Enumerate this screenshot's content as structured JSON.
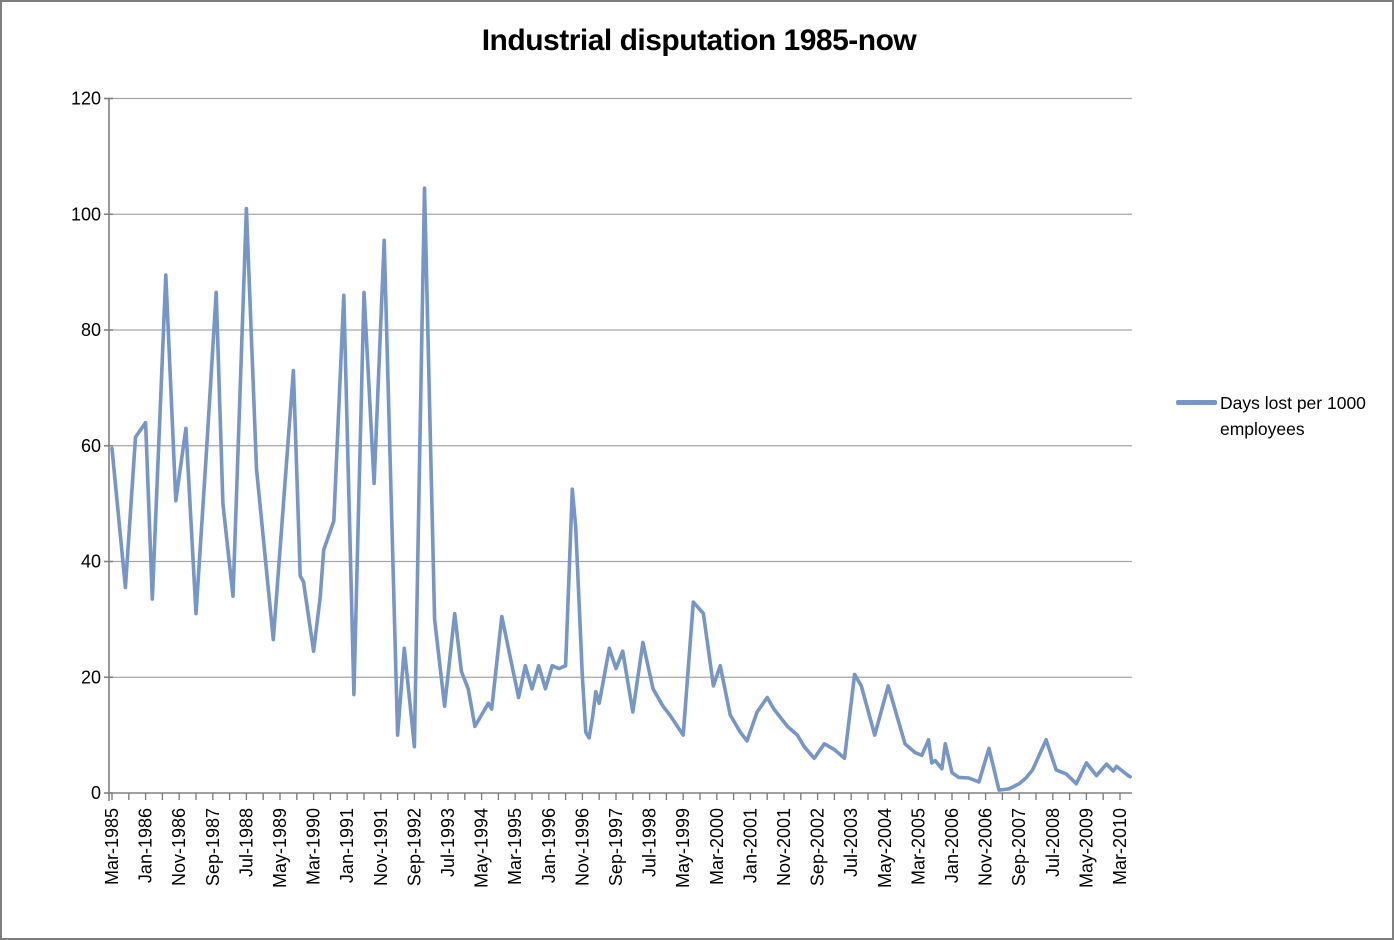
{
  "chart_data": {
    "type": "line",
    "title": "Industrial disputation 1985-now",
    "xlabel": "",
    "ylabel": "",
    "ylim": [
      0,
      120
    ],
    "y_ticks": [
      0,
      20,
      40,
      60,
      80,
      100,
      120
    ],
    "grid": "horizontal",
    "legend_position": "right",
    "x_axis_note": "monthly data from Mar-1985; labels every 10 months; minor ticks every 5 months",
    "x_tick_labels": [
      "Mar-1985",
      "Jan-1986",
      "Nov-1986",
      "Sep-1987",
      "Jul-1988",
      "May-1989",
      "Mar-1990",
      "Jan-1991",
      "Nov-1991",
      "Sep-1992",
      "Jul-1993",
      "May-1994",
      "Mar-1995",
      "Jan-1996",
      "Nov-1996",
      "Sep-1997",
      "Jul-1998",
      "May-1999",
      "Mar-2000",
      "Jan-2001",
      "Nov-2001",
      "Sep-2002",
      "Jul-2003",
      "May-2004",
      "Mar-2005",
      "Jan-2006",
      "Nov-2006",
      "Sep-2007",
      "Jul-2008",
      "May-2009",
      "Mar-2010"
    ],
    "x_label_interval_months": 10,
    "series": [
      {
        "name": "Days lost per 1000 employees",
        "x_unit": "month index, 0 = Mar-1985",
        "points": [
          [
            0,
            59.5
          ],
          [
            4,
            35.5
          ],
          [
            7,
            61.5
          ],
          [
            10,
            64
          ],
          [
            12,
            33.5
          ],
          [
            16,
            89.5
          ],
          [
            19,
            50.5
          ],
          [
            22,
            63
          ],
          [
            25,
            31
          ],
          [
            28,
            58
          ],
          [
            31,
            86.5
          ],
          [
            33,
            50
          ],
          [
            36,
            34
          ],
          [
            40,
            101
          ],
          [
            43,
            56
          ],
          [
            48,
            26.5
          ],
          [
            54,
            73
          ],
          [
            56,
            37.5
          ],
          [
            57,
            36.5
          ],
          [
            60,
            24.5
          ],
          [
            62,
            34
          ],
          [
            63,
            42
          ],
          [
            66,
            47
          ],
          [
            69,
            86
          ],
          [
            72,
            17
          ],
          [
            75,
            86.5
          ],
          [
            78,
            53.5
          ],
          [
            81,
            95.5
          ],
          [
            85,
            10
          ],
          [
            87,
            25
          ],
          [
            90,
            8
          ],
          [
            93,
            104.5
          ],
          [
            96,
            30
          ],
          [
            99,
            15
          ],
          [
            102,
            31
          ],
          [
            104,
            21
          ],
          [
            106,
            18
          ],
          [
            108,
            11.5
          ],
          [
            112,
            15.5
          ],
          [
            113,
            14.5
          ],
          [
            116,
            30.5
          ],
          [
            121,
            16.5
          ],
          [
            123,
            22
          ],
          [
            125,
            18
          ],
          [
            127,
            22
          ],
          [
            129,
            18
          ],
          [
            131,
            22
          ],
          [
            133,
            21.5
          ],
          [
            135,
            22
          ],
          [
            137,
            52.5
          ],
          [
            138,
            46
          ],
          [
            140,
            20
          ],
          [
            141,
            10.5
          ],
          [
            142,
            9.5
          ],
          [
            143,
            13
          ],
          [
            144,
            17.5
          ],
          [
            145,
            15.5
          ],
          [
            148,
            25
          ],
          [
            150,
            21.5
          ],
          [
            152,
            24.5
          ],
          [
            155,
            14
          ],
          [
            158,
            26
          ],
          [
            161,
            18
          ],
          [
            164,
            15
          ],
          [
            166,
            13.5
          ],
          [
            170,
            10
          ],
          [
            173,
            33
          ],
          [
            176,
            31
          ],
          [
            179,
            18.5
          ],
          [
            181,
            22
          ],
          [
            184,
            13.5
          ],
          [
            187,
            10.5
          ],
          [
            189,
            9
          ],
          [
            192,
            14
          ],
          [
            195,
            16.5
          ],
          [
            197,
            14.5
          ],
          [
            201,
            11.5
          ],
          [
            204,
            10
          ],
          [
            206,
            8
          ],
          [
            209,
            6
          ],
          [
            212,
            8.5
          ],
          [
            215,
            7.5
          ],
          [
            218,
            6
          ],
          [
            221,
            20.5
          ],
          [
            223,
            18.5
          ],
          [
            227,
            10
          ],
          [
            231,
            18.5
          ],
          [
            236,
            8.5
          ],
          [
            239,
            7
          ],
          [
            241,
            6.5
          ],
          [
            243,
            9.2
          ],
          [
            244,
            5.2
          ],
          [
            245,
            5.6
          ],
          [
            247,
            4.2
          ],
          [
            248,
            8.5
          ],
          [
            250,
            3.5
          ],
          [
            252,
            2.7
          ],
          [
            255,
            2.6
          ],
          [
            258,
            1.9
          ],
          [
            261,
            7.7
          ],
          [
            264,
            0.5
          ],
          [
            267,
            0.7
          ],
          [
            270,
            1.6
          ],
          [
            272,
            2.6
          ],
          [
            274,
            4
          ],
          [
            278,
            9.2
          ],
          [
            281,
            4
          ],
          [
            284,
            3.3
          ],
          [
            287,
            1.6
          ],
          [
            290,
            5.2
          ],
          [
            293,
            3
          ],
          [
            296,
            5
          ],
          [
            298,
            3.8
          ],
          [
            299,
            4.6
          ],
          [
            302,
            3.2
          ],
          [
            303,
            2.8
          ]
        ]
      }
    ]
  },
  "ui": {
    "legend": {
      "line1": "Days lost per 1000",
      "line2": "employees"
    },
    "colors": {
      "line": "#7596C6",
      "grid": "#A6A6A6",
      "axis": "#808080",
      "text": "#000000",
      "background": "#FFFFFF",
      "border": "#808080"
    }
  }
}
